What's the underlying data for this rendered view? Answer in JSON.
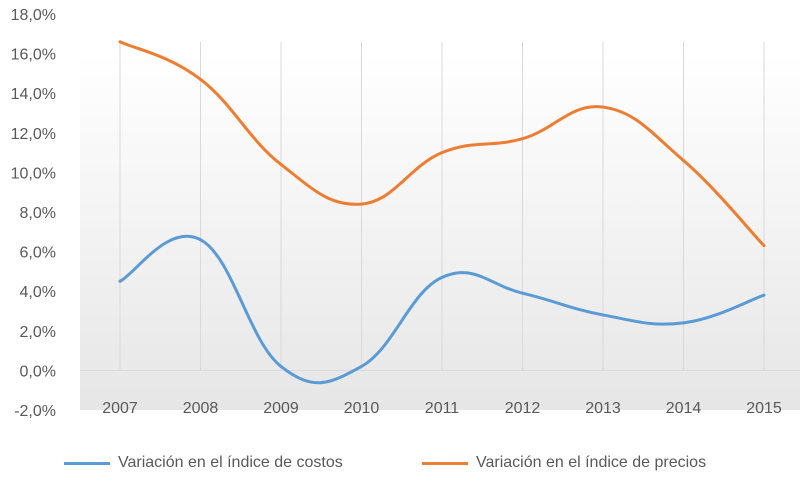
{
  "chart_data": {
    "type": "line",
    "categories": [
      "2007",
      "2008",
      "2009",
      "2010",
      "2011",
      "2012",
      "2013",
      "2014",
      "2015"
    ],
    "series": [
      {
        "name": "Variación en el índice de costos",
        "color": "#5b9bd5",
        "values": [
          4.5,
          6.6,
          0.2,
          0.2,
          4.7,
          3.9,
          2.8,
          2.4,
          3.8
        ]
      },
      {
        "name": "Variación en el índice de precios",
        "color": "#ed7d31",
        "values": [
          16.6,
          14.7,
          10.4,
          8.4,
          11.0,
          11.7,
          13.3,
          10.6,
          6.3
        ]
      }
    ],
    "ylim": [
      -2,
      18
    ],
    "yticks": [
      "-2,0%",
      "0,0%",
      "2,0%",
      "4,0%",
      "6,0%",
      "8,0%",
      "10,0%",
      "12,0%",
      "14,0%",
      "16,0%",
      "18,0%"
    ],
    "ytick_values": [
      -2,
      0,
      2,
      4,
      6,
      8,
      10,
      12,
      14,
      16,
      18
    ],
    "grid": "vertical",
    "legend_position": "bottom",
    "plot_area_gradient": true
  }
}
